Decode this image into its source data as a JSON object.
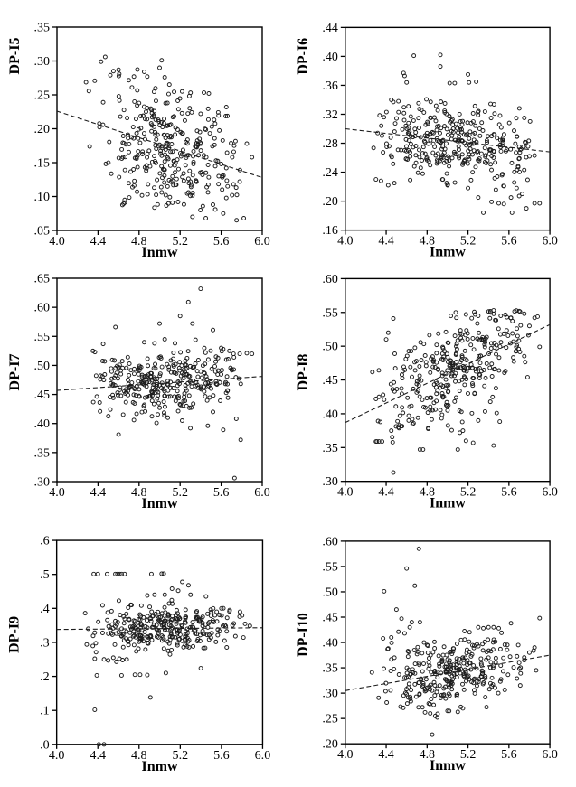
{
  "page": {
    "background": "#ffffff",
    "ink": "#000000"
  },
  "style": {
    "point_marker": "open-circle",
    "point_stroke": "#1c1c1c",
    "axis_color": "#000000",
    "trend_color": "#1c1c1c",
    "trend_style": "dashed"
  },
  "chart_data": [
    {
      "id": "dp-i5",
      "type": "scatter",
      "position": "row1-col1",
      "xlabel": "Inmw",
      "ylabel": "DP-I5",
      "xlim": [
        4.0,
        6.0
      ],
      "ylim": [
        0.05,
        0.35
      ],
      "x_ticks": [
        "4.0",
        "4.4",
        "4.8",
        "5.2",
        "5.6",
        "6.0"
      ],
      "x_tick_values": [
        4.0,
        4.4,
        4.8,
        5.2,
        5.6,
        6.0
      ],
      "y_ticks": [
        ".05",
        ".10",
        ".15",
        ".20",
        ".25",
        ".30",
        ".35"
      ],
      "y_tick_values": [
        0.05,
        0.1,
        0.15,
        0.2,
        0.25,
        0.3,
        0.35
      ],
      "grid": false,
      "legend": false,
      "n_points_approx": 350,
      "trend_line": {
        "x": [
          4.0,
          6.0
        ],
        "y": [
          0.226,
          0.128
        ]
      },
      "points": [
        [
          4.47,
          0.306
        ],
        [
          4.43,
          0.299
        ],
        [
          5.02,
          0.301
        ],
        [
          4.55,
          0.285
        ],
        [
          4.6,
          0.287
        ],
        [
          4.85,
          0.284
        ],
        [
          5.0,
          0.29
        ],
        [
          4.88,
          0.277
        ],
        [
          5.05,
          0.276
        ],
        [
          4.52,
          0.279
        ],
        [
          4.75,
          0.277
        ],
        [
          4.66,
          0.095
        ],
        [
          4.66,
          0.091
        ],
        [
          5.06,
          0.102
        ],
        [
          5.1,
          0.099
        ],
        [
          5.3,
          0.101
        ],
        [
          4.78,
          0.107
        ],
        [
          5.18,
          0.092
        ],
        [
          5.32,
          0.07
        ],
        [
          5.45,
          0.068
        ],
        [
          5.52,
          0.088
        ],
        [
          5.62,
          0.075
        ],
        [
          5.75,
          0.065
        ],
        [
          5.82,
          0.068
        ],
        [
          5.9,
          0.158
        ],
        [
          5.85,
          0.178
        ],
        [
          5.78,
          0.122
        ],
        [
          5.72,
          0.118
        ],
        [
          5.65,
          0.142
        ],
        [
          5.6,
          0.148
        ],
        [
          5.55,
          0.153
        ],
        [
          5.48,
          0.252
        ],
        [
          5.65,
          0.232
        ],
        [
          5.4,
          0.222
        ]
      ],
      "cloud": {
        "n": 310,
        "seed": 7,
        "x_min": 4.25,
        "x_max": 5.9,
        "sigma": 0.043,
        "y_min": 0.075,
        "y_max": 0.298
      }
    },
    {
      "id": "dp-i6",
      "type": "scatter",
      "position": "row1-col2",
      "xlabel": "Inmw",
      "ylabel": "DP-I6",
      "xlim": [
        4.0,
        6.0
      ],
      "ylim": [
        0.16,
        0.44
      ],
      "x_ticks": [
        "4.0",
        "4.4",
        "4.8",
        "5.2",
        "5.6",
        "6.0"
      ],
      "x_tick_values": [
        4.0,
        4.4,
        4.8,
        5.2,
        5.6,
        6.0
      ],
      "y_ticks": [
        ".16",
        ".20",
        ".24",
        ".28",
        ".32",
        ".36",
        ".40",
        ".44"
      ],
      "y_tick_values": [
        0.16,
        0.2,
        0.24,
        0.28,
        0.32,
        0.36,
        0.4,
        0.44
      ],
      "grid": false,
      "legend": false,
      "n_points_approx": 350,
      "trend_line": {
        "x": [
          4.0,
          6.0
        ],
        "y": [
          0.3,
          0.268
        ]
      },
      "points": [
        [
          4.67,
          0.401
        ],
        [
          4.93,
          0.402
        ],
        [
          4.93,
          0.386
        ],
        [
          4.57,
          0.377
        ],
        [
          4.58,
          0.373
        ],
        [
          5.2,
          0.375
        ],
        [
          4.6,
          0.364
        ],
        [
          5.02,
          0.363
        ],
        [
          5.07,
          0.363
        ],
        [
          5.21,
          0.364
        ],
        [
          5.28,
          0.365
        ],
        [
          4.45,
          0.34
        ],
        [
          4.47,
          0.337
        ],
        [
          4.52,
          0.338
        ],
        [
          5.35,
          0.184
        ],
        [
          5.63,
          0.184
        ],
        [
          5.43,
          0.199
        ],
        [
          5.5,
          0.197
        ],
        [
          5.55,
          0.196
        ],
        [
          5.62,
          0.205
        ],
        [
          5.7,
          0.207
        ],
        [
          5.77,
          0.19
        ],
        [
          5.85,
          0.197
        ],
        [
          5.9,
          0.197
        ],
        [
          5.73,
          0.21
        ],
        [
          5.3,
          0.205
        ],
        [
          5.2,
          0.218
        ],
        [
          4.3,
          0.23
        ],
        [
          4.35,
          0.228
        ],
        [
          4.42,
          0.222
        ],
        [
          4.48,
          0.225
        ],
        [
          5.0,
          0.222
        ],
        [
          4.95,
          0.23
        ],
        [
          5.75,
          0.315
        ],
        [
          5.7,
          0.275
        ],
        [
          5.72,
          0.272
        ],
        [
          5.8,
          0.262
        ],
        [
          5.85,
          0.263
        ]
      ],
      "cloud": {
        "n": 320,
        "seed": 13,
        "x_min": 4.25,
        "x_max": 5.9,
        "sigma": 0.028,
        "y_min": 0.215,
        "y_max": 0.345
      }
    },
    {
      "id": "dp-i7",
      "type": "scatter",
      "position": "row2-col1",
      "xlabel": "Inmw",
      "ylabel": "DP-I7",
      "xlim": [
        4.0,
        6.0
      ],
      "ylim": [
        0.3,
        0.65
      ],
      "x_ticks": [
        "4.0",
        "4.4",
        "4.8",
        "5.2",
        "5.6",
        "6.0"
      ],
      "x_tick_values": [
        4.0,
        4.4,
        4.8,
        5.2,
        5.6,
        6.0
      ],
      "y_ticks": [
        ".30",
        ".35",
        ".40",
        ".45",
        ".50",
        ".55",
        ".60",
        ".65"
      ],
      "y_tick_values": [
        0.3,
        0.35,
        0.4,
        0.45,
        0.5,
        0.55,
        0.6,
        0.65
      ],
      "grid": false,
      "legend": false,
      "n_points_approx": 350,
      "trend_line": {
        "x": [
          4.0,
          6.0
        ],
        "y": [
          0.457,
          0.481
        ]
      },
      "points": [
        [
          5.4,
          0.632
        ],
        [
          5.28,
          0.609
        ],
        [
          5.2,
          0.585
        ],
        [
          4.57,
          0.566
        ],
        [
          5.32,
          0.572
        ],
        [
          5.0,
          0.572
        ],
        [
          5.52,
          0.561
        ],
        [
          5.05,
          0.545
        ],
        [
          4.45,
          0.537
        ],
        [
          4.85,
          0.54
        ],
        [
          4.95,
          0.538
        ],
        [
          5.35,
          0.544
        ],
        [
          5.15,
          0.538
        ],
        [
          4.35,
          0.525
        ],
        [
          4.37,
          0.523
        ],
        [
          5.6,
          0.53
        ],
        [
          5.62,
          0.528
        ],
        [
          5.68,
          0.525
        ],
        [
          5.72,
          0.52
        ],
        [
          5.78,
          0.52
        ],
        [
          5.85,
          0.521
        ],
        [
          5.9,
          0.52
        ],
        [
          5.55,
          0.515
        ],
        [
          5.65,
          0.51
        ],
        [
          5.73,
          0.306
        ],
        [
          5.79,
          0.372
        ],
        [
          4.6,
          0.381
        ],
        [
          4.75,
          0.406
        ],
        [
          4.97,
          0.401
        ],
        [
          5.22,
          0.405
        ],
        [
          5.3,
          0.392
        ],
        [
          5.47,
          0.396
        ],
        [
          5.62,
          0.389
        ],
        [
          5.08,
          0.41
        ],
        [
          4.42,
          0.421
        ],
        [
          4.52,
          0.424
        ],
        [
          5.52,
          0.42
        ]
      ],
      "cloud": {
        "n": 310,
        "seed": 21,
        "x_min": 4.25,
        "x_max": 5.9,
        "sigma": 0.027,
        "y_min": 0.408,
        "y_max": 0.532
      }
    },
    {
      "id": "dp-i8",
      "type": "scatter",
      "position": "row2-col2",
      "xlabel": "Inmw",
      "ylabel": "DP-I8",
      "xlim": [
        4.0,
        6.0
      ],
      "ylim": [
        0.3,
        0.6
      ],
      "x_ticks": [
        "4.0",
        "4.4",
        "4.8",
        "5.2",
        "5.6",
        "6.0"
      ],
      "x_tick_values": [
        4.0,
        4.4,
        4.8,
        5.2,
        5.6,
        6.0
      ],
      "y_ticks": [
        ".30",
        ".35",
        ".40",
        ".45",
        ".50",
        ".55",
        ".60"
      ],
      "y_tick_values": [
        0.3,
        0.35,
        0.4,
        0.45,
        0.5,
        0.55,
        0.6
      ],
      "grid": false,
      "legend": false,
      "n_points_approx": 350,
      "trend_line": {
        "x": [
          4.0,
          6.0
        ],
        "y": [
          0.387,
          0.532
        ]
      },
      "points": [
        [
          4.47,
          0.313
        ],
        [
          4.73,
          0.347
        ],
        [
          4.76,
          0.347
        ],
        [
          5.1,
          0.347
        ],
        [
          4.3,
          0.359
        ],
        [
          4.31,
          0.359
        ],
        [
          4.33,
          0.359
        ],
        [
          4.36,
          0.359
        ],
        [
          5.18,
          0.36
        ],
        [
          5.25,
          0.357
        ],
        [
          5.45,
          0.353
        ],
        [
          5.12,
          0.372
        ],
        [
          5.15,
          0.375
        ],
        [
          4.45,
          0.375
        ],
        [
          4.52,
          0.38
        ],
        [
          5.3,
          0.39
        ],
        [
          5.48,
          0.401
        ],
        [
          4.62,
          0.39
        ],
        [
          4.47,
          0.541
        ],
        [
          5.08,
          0.55
        ],
        [
          5.18,
          0.547
        ],
        [
          5.27,
          0.547
        ],
        [
          5.3,
          0.545
        ],
        [
          5.42,
          0.55
        ],
        [
          5.45,
          0.553
        ],
        [
          5.52,
          0.545
        ],
        [
          5.62,
          0.542
        ],
        [
          5.7,
          0.552
        ],
        [
          5.75,
          0.548
        ],
        [
          5.85,
          0.542
        ],
        [
          4.4,
          0.51
        ],
        [
          4.42,
          0.52
        ],
        [
          5.9,
          0.499
        ],
        [
          5.8,
          0.53
        ],
        [
          4.37,
          0.428
        ],
        [
          4.33,
          0.425
        ],
        [
          4.3,
          0.422
        ]
      ],
      "cloud": {
        "n": 320,
        "seed": 29,
        "x_min": 4.25,
        "x_max": 5.9,
        "sigma": 0.037,
        "y_min": 0.352,
        "y_max": 0.553
      }
    },
    {
      "id": "dp-i9",
      "type": "scatter",
      "position": "row3-col1",
      "xlabel": "Inmw",
      "ylabel": "DP-I9",
      "xlim": [
        4.0,
        6.0
      ],
      "ylim": [
        0.0,
        0.6
      ],
      "x_ticks": [
        "4.0",
        "4.4",
        "4.8",
        "5.2",
        "5.6",
        "6.0"
      ],
      "x_tick_values": [
        4.0,
        4.4,
        4.8,
        5.2,
        5.6,
        6.0
      ],
      "y_ticks": [
        ".0",
        ".1",
        ".2",
        ".3",
        ".4",
        ".5",
        ".6"
      ],
      "y_tick_values": [
        0.0,
        0.1,
        0.2,
        0.3,
        0.4,
        0.5,
        0.6
      ],
      "grid": false,
      "legend": false,
      "n_points_approx": 350,
      "trend_line": {
        "x": [
          4.0,
          6.0
        ],
        "y": [
          0.338,
          0.343
        ]
      },
      "points": [
        [
          4.36,
          0.501
        ],
        [
          4.4,
          0.501
        ],
        [
          4.49,
          0.501
        ],
        [
          4.57,
          0.501
        ],
        [
          4.59,
          0.501
        ],
        [
          4.61,
          0.501
        ],
        [
          4.63,
          0.501
        ],
        [
          4.66,
          0.501
        ],
        [
          4.92,
          0.501
        ],
        [
          5.02,
          0.502
        ],
        [
          5.04,
          0.502
        ],
        [
          4.41,
          0.0
        ],
        [
          4.46,
          0.0
        ],
        [
          4.37,
          0.102
        ],
        [
          4.91,
          0.138
        ],
        [
          4.39,
          0.203
        ],
        [
          4.63,
          0.203
        ],
        [
          4.76,
          0.205
        ],
        [
          4.81,
          0.205
        ],
        [
          4.88,
          0.204
        ],
        [
          5.06,
          0.21
        ],
        [
          5.4,
          0.224
        ],
        [
          4.37,
          0.252
        ],
        [
          4.46,
          0.25
        ],
        [
          4.5,
          0.247
        ],
        [
          4.55,
          0.255
        ],
        [
          4.58,
          0.243
        ],
        [
          4.61,
          0.252
        ],
        [
          4.64,
          0.248
        ],
        [
          4.68,
          0.25
        ],
        [
          5.22,
          0.478
        ],
        [
          5.28,
          0.468
        ],
        [
          5.12,
          0.458
        ],
        [
          5.18,
          0.452
        ],
        [
          5.05,
          0.44
        ],
        [
          5.3,
          0.44
        ],
        [
          4.95,
          0.44
        ],
        [
          5.45,
          0.435
        ],
        [
          4.88,
          0.438
        ],
        [
          5.52,
          0.4
        ],
        [
          5.6,
          0.4
        ],
        [
          5.68,
          0.395
        ],
        [
          5.78,
          0.39
        ]
      ],
      "cloud": {
        "n": 300,
        "seed": 37,
        "x_min": 4.25,
        "x_max": 5.9,
        "sigma": 0.036,
        "y_min": 0.252,
        "y_max": 0.43
      }
    },
    {
      "id": "dp-i10",
      "type": "scatter",
      "position": "row3-col2",
      "xlabel": "Inmw",
      "ylabel": "DP-I10",
      "xlim": [
        4.0,
        6.0
      ],
      "ylim": [
        0.2,
        0.6
      ],
      "x_ticks": [
        "4.0",
        "4.4",
        "4.8",
        "5.2",
        "5.6",
        "6.0"
      ],
      "x_tick_values": [
        4.0,
        4.4,
        4.8,
        5.2,
        5.6,
        6.0
      ],
      "y_ticks": [
        ".20",
        ".25",
        ".30",
        ".35",
        ".40",
        ".45",
        ".50",
        ".55",
        ".60"
      ],
      "y_tick_values": [
        0.2,
        0.25,
        0.3,
        0.35,
        0.4,
        0.45,
        0.5,
        0.55,
        0.6
      ],
      "grid": false,
      "legend": false,
      "n_points_approx": 350,
      "trend_line": {
        "x": [
          4.0,
          6.0
        ],
        "y": [
          0.305,
          0.375
        ]
      },
      "points": [
        [
          4.72,
          0.585
        ],
        [
          4.6,
          0.546
        ],
        [
          4.68,
          0.512
        ],
        [
          4.38,
          0.501
        ],
        [
          4.5,
          0.465
        ],
        [
          4.55,
          0.447
        ],
        [
          4.63,
          0.43
        ],
        [
          4.73,
          0.44
        ],
        [
          5.9,
          0.448
        ],
        [
          4.37,
          0.408
        ],
        [
          4.45,
          0.41
        ],
        [
          4.52,
          0.421
        ],
        [
          4.58,
          0.418
        ],
        [
          4.42,
          0.388
        ],
        [
          4.48,
          0.37
        ],
        [
          4.65,
          0.44
        ],
        [
          4.77,
          0.4
        ],
        [
          4.8,
          0.395
        ],
        [
          4.85,
          0.218
        ],
        [
          4.88,
          0.255
        ],
        [
          4.9,
          0.252
        ],
        [
          4.83,
          0.26
        ],
        [
          4.78,
          0.262
        ],
        [
          5.0,
          0.265
        ],
        [
          5.1,
          0.263
        ],
        [
          5.15,
          0.27
        ],
        [
          5.62,
          0.438
        ],
        [
          5.45,
          0.43
        ],
        [
          5.5,
          0.428
        ],
        [
          5.85,
          0.39
        ],
        [
          5.8,
          0.38
        ],
        [
          5.75,
          0.365
        ],
        [
          5.7,
          0.36
        ],
        [
          5.3,
          0.43
        ],
        [
          5.35,
          0.428
        ],
        [
          5.4,
          0.43
        ]
      ],
      "cloud": {
        "n": 300,
        "seed": 45,
        "x_min": 4.25,
        "x_max": 5.9,
        "sigma": 0.034,
        "y_min": 0.258,
        "y_max": 0.425
      }
    }
  ]
}
